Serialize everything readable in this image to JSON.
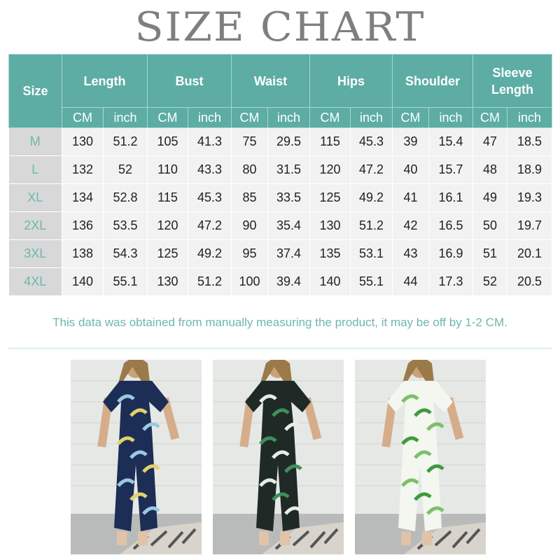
{
  "title": "SIZE CHART",
  "table": {
    "size_header": "Size",
    "groups": [
      "Length",
      "Bust",
      "Waist",
      "Hips",
      "Shoulder",
      "Sleeve Length"
    ],
    "units": [
      "CM",
      "inch"
    ],
    "rows": [
      {
        "size": "M",
        "values": [
          "130",
          "51.2",
          "105",
          "41.3",
          "75",
          "29.5",
          "115",
          "45.3",
          "39",
          "15.4",
          "47",
          "18.5"
        ]
      },
      {
        "size": "L",
        "values": [
          "132",
          "52",
          "110",
          "43.3",
          "80",
          "31.5",
          "120",
          "47.2",
          "40",
          "15.7",
          "48",
          "18.9"
        ]
      },
      {
        "size": "XL",
        "values": [
          "134",
          "52.8",
          "115",
          "45.3",
          "85",
          "33.5",
          "125",
          "49.2",
          "41",
          "16.1",
          "49",
          "19.3"
        ]
      },
      {
        "size": "2XL",
        "values": [
          "136",
          "53.5",
          "120",
          "47.2",
          "90",
          "35.4",
          "130",
          "51.2",
          "42",
          "16.5",
          "50",
          "19.7"
        ]
      },
      {
        "size": "3XL",
        "values": [
          "138",
          "54.3",
          "125",
          "49.2",
          "95",
          "37.4",
          "135",
          "53.1",
          "43",
          "16.9",
          "51",
          "20.1"
        ]
      },
      {
        "size": "4XL",
        "values": [
          "140",
          "55.1",
          "130",
          "51.2",
          "100",
          "39.4",
          "140",
          "55.1",
          "44",
          "17.3",
          "52",
          "20.5"
        ]
      }
    ]
  },
  "note": "This data was obtained from manually measuring the product, it may be off by 1-2 CM.",
  "colors": {
    "header": "#5dada4",
    "accent": "#6cb8ae",
    "title": "#7f7f7f"
  },
  "photos": [
    {
      "base": "#1c2e55",
      "pattern": "#e3d06a",
      "pattern2": "#9cc8e0"
    },
    {
      "base": "#1f2a26",
      "pattern": "#3f8f5c",
      "pattern2": "#e8ece6"
    },
    {
      "base": "#f4f6f0",
      "pattern": "#3e9a3e",
      "pattern2": "#7cc06a"
    }
  ]
}
